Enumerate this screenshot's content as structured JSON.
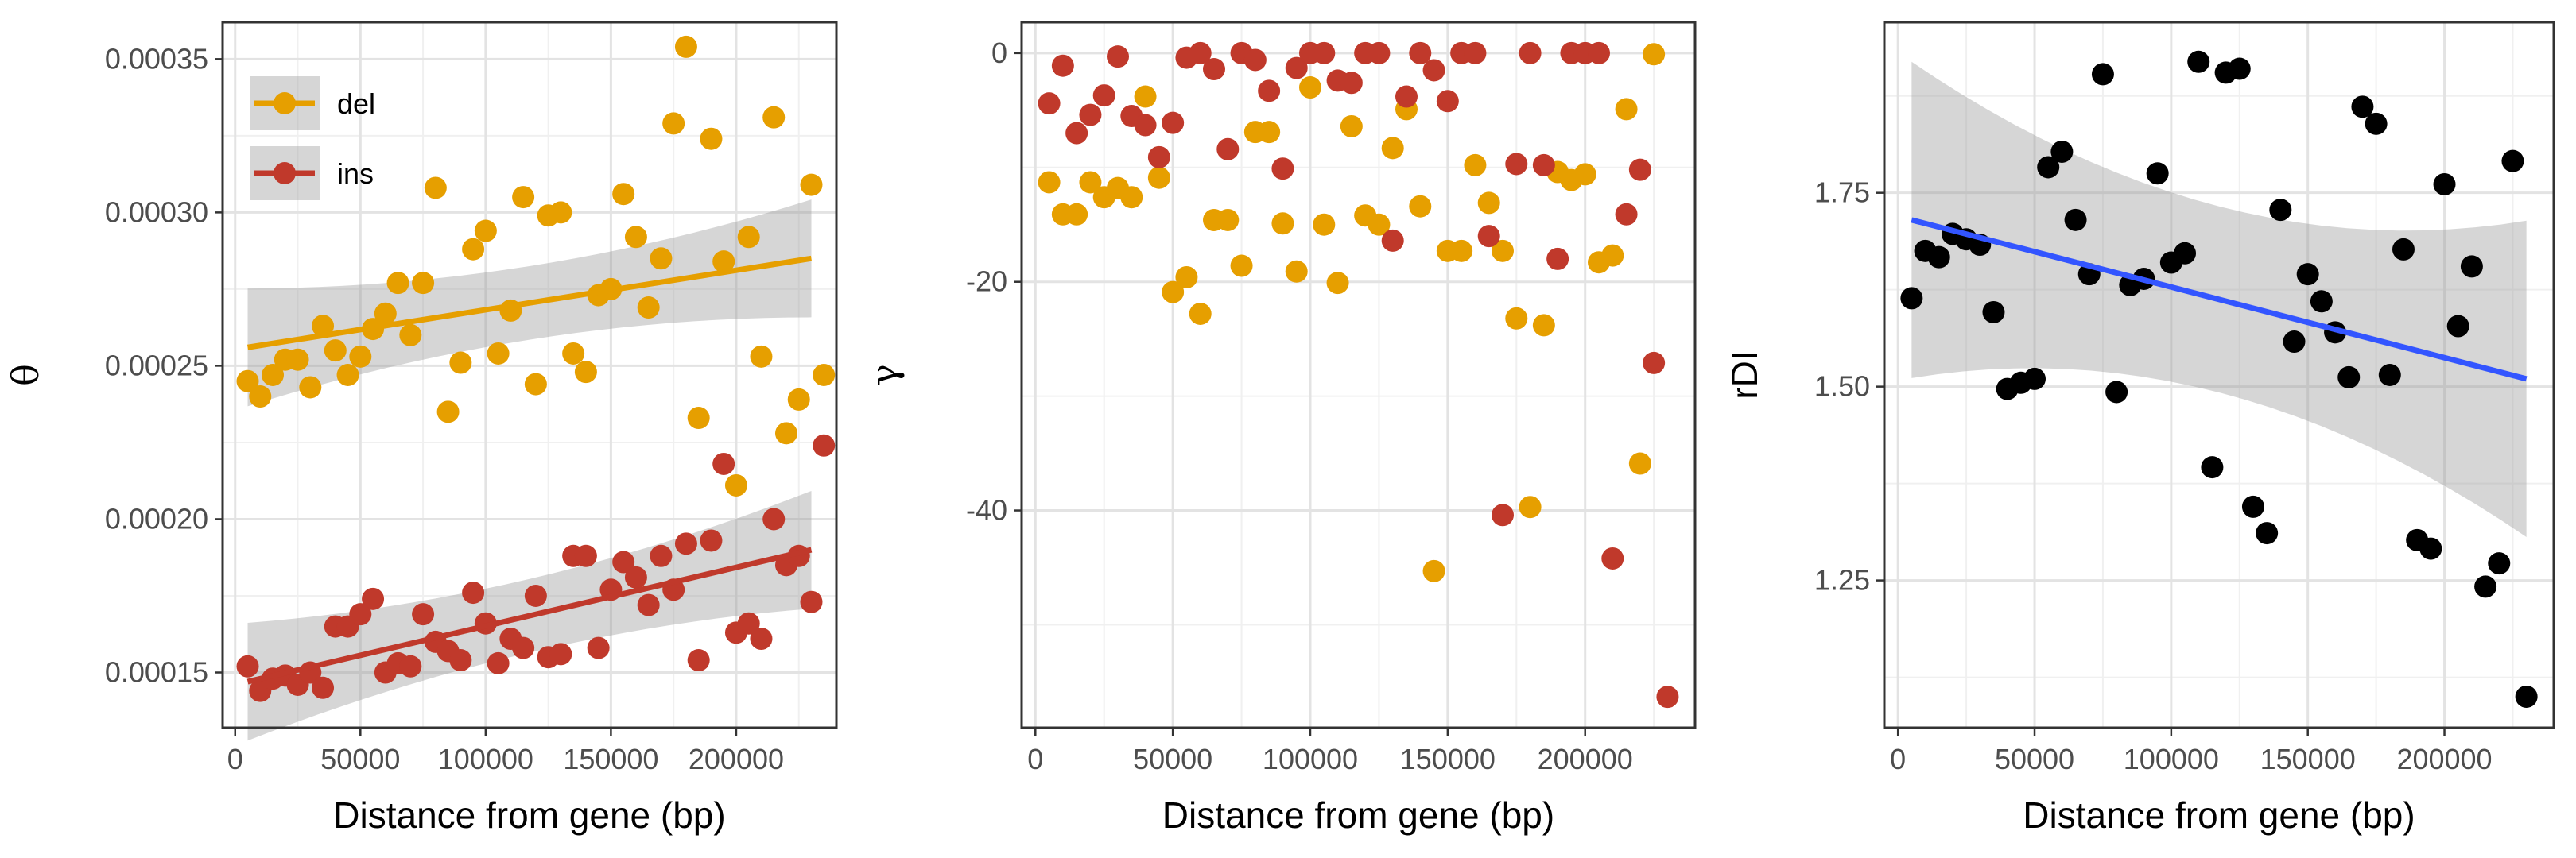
{
  "chart_data": [
    {
      "type": "scatter",
      "xlabel": "Distance from gene (bp)",
      "ylabel": "θ",
      "xlim": [
        -5000,
        240000
      ],
      "ylim": [
        0.000132,
        0.000362
      ],
      "x_ticks": [
        0,
        50000,
        100000,
        150000,
        200000
      ],
      "x_tick_labels": [
        "0",
        "50000",
        "100000",
        "150000",
        "200000"
      ],
      "y_ticks": [
        0.00015,
        0.0002,
        0.00025,
        0.0003,
        0.00035
      ],
      "y_tick_labels": [
        "0.00015",
        "0.00020",
        "0.00025",
        "0.00030",
        "0.00035"
      ],
      "grid": true,
      "legend": {
        "position": "top-left",
        "entries": [
          "del",
          "ins"
        ]
      },
      "series": [
        {
          "name": "del",
          "color": "#E69F00",
          "trend": {
            "x": [
              5000,
              230000
            ],
            "y": [
              0.000256,
              0.000285
            ]
          },
          "points": [
            [
              5000,
              0.000245
            ],
            [
              10000,
              0.00024
            ],
            [
              15000,
              0.000247
            ],
            [
              20000,
              0.000252
            ],
            [
              25000,
              0.000252
            ],
            [
              30000,
              0.000243
            ],
            [
              35000,
              0.000263
            ],
            [
              40000,
              0.000255
            ],
            [
              45000,
              0.000247
            ],
            [
              50000,
              0.000253
            ],
            [
              55000,
              0.000262
            ],
            [
              60000,
              0.000267
            ],
            [
              65000,
              0.000277
            ],
            [
              70000,
              0.00026
            ],
            [
              75000,
              0.000277
            ],
            [
              80000,
              0.000308
            ],
            [
              85000,
              0.000235
            ],
            [
              90000,
              0.000251
            ],
            [
              95000,
              0.000288
            ],
            [
              100000,
              0.000294
            ],
            [
              105000,
              0.000254
            ],
            [
              110000,
              0.000268
            ],
            [
              115000,
              0.000305
            ],
            [
              120000,
              0.000244
            ],
            [
              125000,
              0.000299
            ],
            [
              130000,
              0.0003
            ],
            [
              135000,
              0.000254
            ],
            [
              140000,
              0.000248
            ],
            [
              145000,
              0.000273
            ],
            [
              150000,
              0.000275
            ],
            [
              155000,
              0.000306
            ],
            [
              160000,
              0.000292
            ],
            [
              165000,
              0.000269
            ],
            [
              170000,
              0.000285
            ],
            [
              175000,
              0.000329
            ],
            [
              180000,
              0.000354
            ],
            [
              185000,
              0.000233
            ],
            [
              190000,
              0.000324
            ],
            [
              195000,
              0.000284
            ],
            [
              200000,
              0.000211
            ],
            [
              205000,
              0.000292
            ],
            [
              210000,
              0.000253
            ],
            [
              215000,
              0.000331
            ],
            [
              220000,
              0.000228
            ],
            [
              225000,
              0.000239
            ],
            [
              230000,
              0.000309
            ],
            [
              235000,
              0.000247
            ]
          ]
        },
        {
          "name": "ins",
          "color": "#C0392B",
          "trend": {
            "x": [
              5000,
              230000
            ],
            "y": [
              0.000147,
              0.00019
            ]
          },
          "points": [
            [
              5000,
              0.000152
            ],
            [
              10000,
              0.000144
            ],
            [
              15000,
              0.000148
            ],
            [
              20000,
              0.000149
            ],
            [
              25000,
              0.000146
            ],
            [
              30000,
              0.00015
            ],
            [
              35000,
              0.000145
            ],
            [
              40000,
              0.000165
            ],
            [
              45000,
              0.000165
            ],
            [
              50000,
              0.000169
            ],
            [
              55000,
              0.000174
            ],
            [
              60000,
              0.00015
            ],
            [
              65000,
              0.000153
            ],
            [
              70000,
              0.000152
            ],
            [
              75000,
              0.000169
            ],
            [
              80000,
              0.00016
            ],
            [
              85000,
              0.000157
            ],
            [
              90000,
              0.000154
            ],
            [
              95000,
              0.000176
            ],
            [
              100000,
              0.000166
            ],
            [
              105000,
              0.000153
            ],
            [
              110000,
              0.000161
            ],
            [
              115000,
              0.000158
            ],
            [
              120000,
              0.000175
            ],
            [
              125000,
              0.000155
            ],
            [
              130000,
              0.000156
            ],
            [
              135000,
              0.000188
            ],
            [
              140000,
              0.000188
            ],
            [
              145000,
              0.000158
            ],
            [
              150000,
              0.000177
            ],
            [
              155000,
              0.000186
            ],
            [
              160000,
              0.000181
            ],
            [
              165000,
              0.000172
            ],
            [
              170000,
              0.000188
            ],
            [
              175000,
              0.000177
            ],
            [
              180000,
              0.000192
            ],
            [
              185000,
              0.000154
            ],
            [
              190000,
              0.000193
            ],
            [
              195000,
              0.000218
            ],
            [
              200000,
              0.000163
            ],
            [
              205000,
              0.000166
            ],
            [
              210000,
              0.000161
            ],
            [
              215000,
              0.0002
            ],
            [
              220000,
              0.000185
            ],
            [
              225000,
              0.000188
            ],
            [
              230000,
              0.000173
            ],
            [
              235000,
              0.000224
            ]
          ]
        }
      ]
    },
    {
      "type": "scatter",
      "xlabel": "Distance from gene (bp)",
      "ylabel": "γ",
      "xlim": [
        -5000,
        240000
      ],
      "ylim": [
        -59,
        2.7
      ],
      "x_ticks": [
        0,
        50000,
        100000,
        150000,
        200000
      ],
      "x_tick_labels": [
        "0",
        "50000",
        "100000",
        "150000",
        "200000"
      ],
      "y_ticks": [
        0,
        -20,
        -40
      ],
      "y_tick_labels": [
        "0",
        "-20",
        "-40"
      ],
      "grid": true,
      "series": [
        {
          "name": "del",
          "color": "#E69F00",
          "points": [
            [
              5000,
              -11.3
            ],
            [
              10000,
              -14.1
            ],
            [
              15000,
              -14.1
            ],
            [
              20000,
              -11.3
            ],
            [
              25000,
              -12.6
            ],
            [
              30000,
              -11.8
            ],
            [
              35000,
              -12.6
            ],
            [
              40000,
              -3.8
            ],
            [
              45000,
              -10.9
            ],
            [
              50000,
              -20.9
            ],
            [
              55000,
              -19.6
            ],
            [
              60000,
              -22.8
            ],
            [
              65000,
              -14.6
            ],
            [
              70000,
              -14.6
            ],
            [
              75000,
              -18.6
            ],
            [
              80000,
              -6.9
            ],
            [
              85000,
              -6.9
            ],
            [
              90000,
              -14.9
            ],
            [
              95000,
              -19.1
            ],
            [
              100000,
              -3.0
            ],
            [
              105000,
              -15.0
            ],
            [
              110000,
              -20.1
            ],
            [
              115000,
              -6.4
            ],
            [
              120000,
              -14.2
            ],
            [
              125000,
              -15.0
            ],
            [
              130000,
              -8.3
            ],
            [
              135000,
              -4.9
            ],
            [
              140000,
              -13.4
            ],
            [
              145000,
              -45.3
            ],
            [
              150000,
              -17.3
            ],
            [
              155000,
              -17.3
            ],
            [
              160000,
              -9.8
            ],
            [
              165000,
              -13.1
            ],
            [
              170000,
              -17.3
            ],
            [
              175000,
              -23.2
            ],
            [
              180000,
              -39.7
            ],
            [
              185000,
              -23.8
            ],
            [
              190000,
              -10.4
            ],
            [
              195000,
              -11.1
            ],
            [
              200000,
              -10.6
            ],
            [
              205000,
              -18.3
            ],
            [
              210000,
              -17.7
            ],
            [
              215000,
              -4.9
            ],
            [
              220000,
              -35.9
            ],
            [
              225000,
              -0.1
            ]
          ]
        },
        {
          "name": "ins",
          "color": "#C0392B",
          "points": [
            [
              5000,
              -4.4
            ],
            [
              10000,
              -1.1
            ],
            [
              15000,
              -7.0
            ],
            [
              20000,
              -5.4
            ],
            [
              25000,
              -3.7
            ],
            [
              30000,
              -0.3
            ],
            [
              35000,
              -5.5
            ],
            [
              40000,
              -6.3
            ],
            [
              45000,
              -9.1
            ],
            [
              50000,
              -6.1
            ],
            [
              55000,
              -0.4
            ],
            [
              60000,
              0.0
            ],
            [
              65000,
              -1.4
            ],
            [
              70000,
              -8.4
            ],
            [
              75000,
              0.0
            ],
            [
              80000,
              -0.6
            ],
            [
              85000,
              -3.3
            ],
            [
              90000,
              -10.1
            ],
            [
              95000,
              -1.3
            ],
            [
              100000,
              0.0
            ],
            [
              105000,
              0.0
            ],
            [
              110000,
              -2.4
            ],
            [
              115000,
              -2.6
            ],
            [
              120000,
              0.0
            ],
            [
              125000,
              0.0
            ],
            [
              130000,
              -16.4
            ],
            [
              135000,
              -3.8
            ],
            [
              140000,
              0.0
            ],
            [
              145000,
              -1.5
            ],
            [
              150000,
              -4.2
            ],
            [
              155000,
              0.0
            ],
            [
              160000,
              0.0
            ],
            [
              165000,
              -16.0
            ],
            [
              170000,
              -40.4
            ],
            [
              175000,
              -9.7
            ],
            [
              180000,
              0.0
            ],
            [
              185000,
              -9.8
            ],
            [
              190000,
              -18.0
            ],
            [
              195000,
              0.0
            ],
            [
              200000,
              0.0
            ],
            [
              205000,
              0.0
            ],
            [
              210000,
              -44.2
            ],
            [
              215000,
              -14.1
            ],
            [
              220000,
              -10.2
            ],
            [
              225000,
              -27.1
            ],
            [
              230000,
              -56.3
            ]
          ]
        }
      ]
    },
    {
      "type": "scatter",
      "xlabel": "Distance from gene (bp)",
      "ylabel": "rDI",
      "xlim": [
        -5000,
        240000
      ],
      "ylim": [
        1.06,
        1.97
      ],
      "x_ticks": [
        0,
        50000,
        100000,
        150000,
        200000
      ],
      "x_tick_labels": [
        "0",
        "50000",
        "100000",
        "150000",
        "200000"
      ],
      "y_ticks": [
        1.25,
        1.5,
        1.75
      ],
      "y_tick_labels": [
        "1.25",
        "1.50",
        "1.75"
      ],
      "grid": true,
      "series": [
        {
          "name": "rDI",
          "color": "#000000",
          "trend": {
            "color": "#3355FF",
            "x": [
              5000,
              230000
            ],
            "y": [
              1.715,
              1.51
            ]
          },
          "points": [
            [
              5000,
              1.614
            ],
            [
              10000,
              1.675
            ],
            [
              15000,
              1.667
            ],
            [
              20000,
              1.697
            ],
            [
              25000,
              1.69
            ],
            [
              30000,
              1.683
            ],
            [
              35000,
              1.596
            ],
            [
              40000,
              1.497
            ],
            [
              45000,
              1.505
            ],
            [
              50000,
              1.51
            ],
            [
              55000,
              1.783
            ],
            [
              60000,
              1.803
            ],
            [
              65000,
              1.715
            ],
            [
              70000,
              1.645
            ],
            [
              75000,
              1.903
            ],
            [
              80000,
              1.493
            ],
            [
              85000,
              1.631
            ],
            [
              90000,
              1.639
            ],
            [
              95000,
              1.775
            ],
            [
              100000,
              1.66
            ],
            [
              105000,
              1.672
            ],
            [
              110000,
              1.919
            ],
            [
              115000,
              1.396
            ],
            [
              120000,
              1.905
            ],
            [
              125000,
              1.91
            ],
            [
              130000,
              1.345
            ],
            [
              135000,
              1.311
            ],
            [
              140000,
              1.728
            ],
            [
              145000,
              1.558
            ],
            [
              150000,
              1.645
            ],
            [
              155000,
              1.61
            ],
            [
              160000,
              1.57
            ],
            [
              165000,
              1.512
            ],
            [
              170000,
              1.861
            ],
            [
              175000,
              1.839
            ],
            [
              180000,
              1.515
            ],
            [
              185000,
              1.677
            ],
            [
              190000,
              1.302
            ],
            [
              195000,
              1.291
            ],
            [
              200000,
              1.761
            ],
            [
              205000,
              1.578
            ],
            [
              210000,
              1.655
            ],
            [
              215000,
              1.242
            ],
            [
              220000,
              1.272
            ],
            [
              225000,
              1.791
            ],
            [
              230000,
              1.1
            ]
          ]
        }
      ]
    }
  ]
}
